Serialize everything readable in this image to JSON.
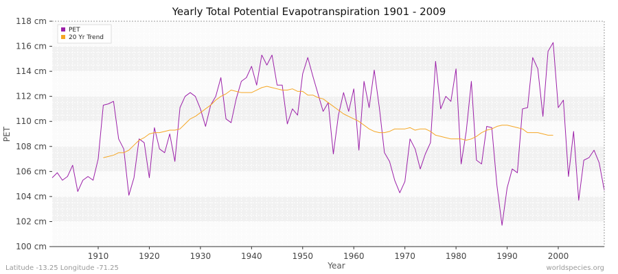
{
  "chart_data": {
    "type": "line",
    "title": "Yearly Total Potential Evapotranspiration 1901 - 2009",
    "xlabel": "Year",
    "ylabel": "PET",
    "xlim": [
      1901,
      2009
    ],
    "ylim": [
      100,
      118
    ],
    "x_ticks": [
      1910,
      1920,
      1930,
      1940,
      1950,
      1960,
      1970,
      1980,
      1990,
      2000
    ],
    "y_ticks": [
      {
        "value": 100,
        "label": "100 cm"
      },
      {
        "value": 102,
        "label": "102 cm"
      },
      {
        "value": 104,
        "label": "104 cm"
      },
      {
        "value": 106,
        "label": "106 cm"
      },
      {
        "value": 108,
        "label": "108 cm"
      },
      {
        "value": 110,
        "label": "110 cm"
      },
      {
        "value": 112,
        "label": "112 cm"
      },
      {
        "value": 114,
        "label": "114 cm"
      },
      {
        "value": 116,
        "label": "116 cm"
      },
      {
        "value": 118,
        "label": "118 cm"
      }
    ],
    "grid": true,
    "legend_position": "top-left",
    "series": [
      {
        "name": "PET",
        "color": "#9b1fa8",
        "x": [
          1901,
          1902,
          1903,
          1904,
          1905,
          1906,
          1907,
          1908,
          1909,
          1910,
          1911,
          1912,
          1913,
          1914,
          1915,
          1916,
          1917,
          1918,
          1919,
          1920,
          1921,
          1922,
          1923,
          1924,
          1925,
          1926,
          1927,
          1928,
          1929,
          1930,
          1931,
          1932,
          1933,
          1934,
          1935,
          1936,
          1937,
          1938,
          1939,
          1940,
          1941,
          1942,
          1943,
          1944,
          1945,
          1946,
          1947,
          1948,
          1949,
          1950,
          1951,
          1952,
          1953,
          1954,
          1955,
          1956,
          1957,
          1958,
          1959,
          1960,
          1961,
          1962,
          1963,
          1964,
          1965,
          1966,
          1967,
          1968,
          1969,
          1970,
          1971,
          1972,
          1973,
          1974,
          1975,
          1976,
          1977,
          1978,
          1979,
          1980,
          1981,
          1982,
          1983,
          1984,
          1985,
          1986,
          1987,
          1988,
          1989,
          1990,
          1991,
          1992,
          1993,
          1994,
          1995,
          1996,
          1997,
          1998,
          1999,
          2000,
          2001,
          2002,
          2003,
          2004,
          2005,
          2006,
          2007,
          2008,
          2009
        ],
        "values": [
          105.5,
          105.9,
          105.3,
          105.6,
          106.5,
          104.4,
          105.3,
          105.6,
          105.3,
          107.0,
          111.3,
          111.4,
          111.6,
          108.6,
          107.8,
          104.1,
          105.5,
          108.6,
          108.3,
          105.5,
          109.5,
          107.8,
          107.5,
          109.0,
          106.8,
          111.1,
          112.0,
          112.3,
          112.0,
          111.0,
          109.6,
          111.3,
          112.0,
          113.5,
          110.2,
          109.9,
          111.8,
          113.2,
          113.5,
          114.4,
          112.9,
          115.3,
          114.5,
          115.3,
          112.9,
          112.9,
          109.8,
          111.0,
          110.5,
          113.8,
          115.1,
          113.6,
          112.2,
          110.8,
          111.5,
          107.4,
          110.5,
          112.3,
          110.8,
          112.6,
          107.7,
          113.2,
          111.1,
          114.1,
          111.1,
          107.5,
          106.8,
          105.3,
          104.3,
          105.2,
          108.6,
          107.8,
          106.2,
          107.4,
          108.3,
          114.8,
          111.0,
          112.0,
          111.6,
          114.2,
          106.6,
          109.2,
          113.2,
          106.9,
          106.6,
          109.6,
          109.5,
          104.9,
          101.7,
          104.7,
          106.2,
          105.9,
          111.0,
          111.1,
          115.1,
          114.2,
          110.4,
          115.6,
          116.3,
          111.1,
          111.7,
          105.6,
          109.2,
          103.7,
          106.9,
          107.1,
          107.7,
          106.7,
          104.5
        ]
      },
      {
        "name": "20 Yr Trend",
        "color": "#f5a623",
        "x": [
          1911,
          1912,
          1913,
          1914,
          1915,
          1916,
          1917,
          1918,
          1919,
          1920,
          1921,
          1922,
          1923,
          1924,
          1925,
          1926,
          1927,
          1928,
          1929,
          1930,
          1931,
          1932,
          1933,
          1934,
          1935,
          1936,
          1937,
          1938,
          1939,
          1940,
          1941,
          1942,
          1943,
          1944,
          1945,
          1946,
          1947,
          1948,
          1949,
          1950,
          1951,
          1952,
          1953,
          1954,
          1955,
          1956,
          1957,
          1958,
          1959,
          1960,
          1961,
          1962,
          1963,
          1964,
          1965,
          1966,
          1967,
          1968,
          1969,
          1970,
          1971,
          1972,
          1973,
          1974,
          1975,
          1976,
          1977,
          1978,
          1979,
          1980,
          1981,
          1982,
          1983,
          1984,
          1985,
          1986,
          1987,
          1988,
          1989,
          1990,
          1991,
          1992,
          1993,
          1994,
          1995,
          1996,
          1997,
          1998,
          1999
        ],
        "values": [
          107.1,
          107.2,
          107.3,
          107.5,
          107.5,
          107.7,
          108.1,
          108.5,
          108.7,
          109.0,
          109.1,
          109.1,
          109.2,
          109.3,
          109.3,
          109.4,
          109.8,
          110.2,
          110.4,
          110.7,
          111.0,
          111.3,
          111.7,
          112.0,
          112.2,
          112.5,
          112.4,
          112.3,
          112.3,
          112.3,
          112.5,
          112.7,
          112.8,
          112.7,
          112.6,
          112.5,
          112.5,
          112.6,
          112.4,
          112.4,
          112.1,
          112.1,
          111.9,
          111.8,
          111.5,
          111.2,
          110.9,
          110.6,
          110.4,
          110.2,
          110.0,
          109.7,
          109.4,
          109.2,
          109.1,
          109.1,
          109.2,
          109.4,
          109.4,
          109.4,
          109.5,
          109.3,
          109.4,
          109.4,
          109.2,
          108.9,
          108.8,
          108.7,
          108.6,
          108.6,
          108.6,
          108.5,
          108.6,
          108.8,
          109.1,
          109.3,
          109.4,
          109.6,
          109.7,
          109.7,
          109.6,
          109.5,
          109.4,
          109.1,
          109.1,
          109.1,
          109.0,
          108.9,
          108.9
        ]
      }
    ]
  },
  "footer": {
    "left": "Latitude -13.25 Longitude -71.25",
    "right": "worldspecies.org"
  }
}
